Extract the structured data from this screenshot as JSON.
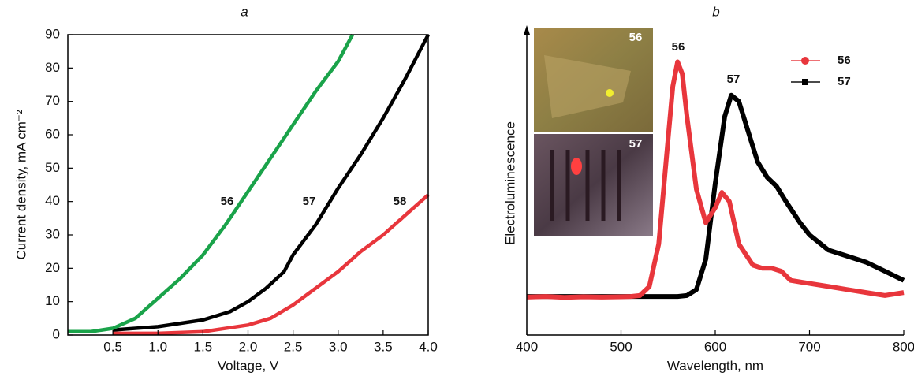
{
  "chart_data": [
    {
      "type": "line",
      "title": "a",
      "xlabel": "Voltage, V",
      "ylabel": "Current density, mA cm⁻²",
      "xlim": [
        0,
        4
      ],
      "xticks": [
        0.5,
        {
          "value": 1,
          "label": "1.0"
        },
        1.5,
        {
          "value": 2,
          "label": "2.0"
        },
        2.5,
        {
          "value": 3,
          "label": "3.0"
        },
        3.5,
        {
          "value": 4,
          "label": "4.0"
        }
      ],
      "ylim": [
        0,
        90
      ],
      "yticks": [
        0,
        10,
        20,
        30,
        40,
        50,
        60,
        70,
        80,
        90
      ],
      "series": [
        {
          "name": "56",
          "color": "#1aa34a",
          "x": [
            0,
            0.25,
            0.5,
            0.75,
            1,
            1.25,
            1.5,
            1.75,
            2,
            2.25,
            2.5,
            2.75,
            3,
            3.16
          ],
          "values": [
            1,
            1,
            2,
            5,
            11,
            17,
            24,
            33,
            43,
            53,
            63,
            73,
            82,
            90
          ]
        },
        {
          "name": "57",
          "color": "#000000",
          "x": [
            0.5,
            1,
            1.5,
            1.8,
            2,
            2.2,
            2.4,
            2.5,
            2.75,
            3,
            3.25,
            3.5,
            3.75,
            4
          ],
          "values": [
            1.5,
            2.5,
            4.5,
            7,
            10,
            14,
            19,
            24,
            33,
            44,
            54,
            65,
            77,
            90
          ]
        },
        {
          "name": "58",
          "color": "#e8363c",
          "x": [
            0.5,
            1,
            1.5,
            2,
            2.25,
            2.5,
            2.75,
            3,
            3.25,
            3.5,
            3.75,
            4
          ],
          "values": [
            0.5,
            0.5,
            1,
            3,
            5,
            9,
            14,
            19,
            25,
            30,
            36,
            42
          ]
        }
      ]
    },
    {
      "type": "line",
      "title": "b",
      "xlabel": "Wavelength, nm",
      "ylabel": "Electroluminescence",
      "xlim": [
        400,
        800
      ],
      "xticks": [
        400,
        500,
        600,
        700,
        800
      ],
      "ylim": [
        0,
        100
      ],
      "legend": "upper right",
      "series": [
        {
          "name": "56",
          "color": "#e8363c",
          "x": [
            400,
            420,
            440,
            460,
            480,
            500,
            510,
            520,
            530,
            540,
            550,
            555,
            560,
            565,
            570,
            580,
            590,
            600,
            607,
            615,
            625,
            640,
            650,
            660,
            670,
            680,
            700,
            720,
            740,
            760,
            780,
            800
          ],
          "values": [
            12.5,
            12.7,
            12.4,
            12.6,
            12.5,
            12.6,
            12.7,
            13,
            16,
            30,
            65,
            82,
            90,
            86,
            72,
            48,
            37,
            42,
            47,
            44,
            30,
            23,
            22,
            22,
            21,
            18,
            17,
            16,
            15,
            14,
            13,
            14
          ]
        },
        {
          "name": "57",
          "color": "#000000",
          "x": [
            400,
            450,
            500,
            540,
            560,
            570,
            580,
            590,
            600,
            610,
            617,
            625,
            635,
            645,
            655,
            665,
            675,
            690,
            700,
            720,
            740,
            760,
            780,
            800
          ],
          "values": [
            12.7,
            12.7,
            12.7,
            12.7,
            12.7,
            13,
            15,
            25,
            50,
            72,
            79,
            77,
            67,
            57,
            52,
            49,
            44,
            37,
            33,
            28,
            26,
            24,
            21,
            18
          ]
        }
      ]
    }
  ]
}
